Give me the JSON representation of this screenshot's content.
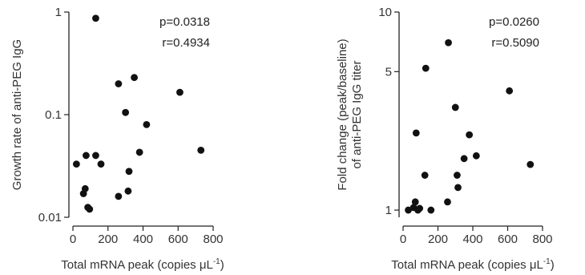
{
  "chart_data": [
    {
      "type": "scatter",
      "xlabel": "Total mRNA peak (copies μL",
      "xlabel_sup": "-1",
      "xlabel_close": ")",
      "ylabel": "Growth rate of anti-PEG IgG",
      "ylabel_line2": "",
      "xlim": [
        0,
        800
      ],
      "ylim": [
        0.01,
        1
      ],
      "yscale": "log",
      "xticks": [
        "0",
        "200",
        "400",
        "600",
        "800"
      ],
      "xtick_values": [
        0,
        200,
        400,
        600,
        800
      ],
      "yticks": [
        "0.01",
        "0.1",
        "1"
      ],
      "ytick_values": [
        0.01,
        0.1,
        1
      ],
      "annotations": [
        "p=0.0318",
        "r=0.4934"
      ],
      "points": [
        {
          "x": 20,
          "y": 0.033
        },
        {
          "x": 60,
          "y": 0.017
        },
        {
          "x": 70,
          "y": 0.019
        },
        {
          "x": 75,
          "y": 0.04
        },
        {
          "x": 85,
          "y": 0.0125
        },
        {
          "x": 95,
          "y": 0.012
        },
        {
          "x": 130,
          "y": 0.04
        },
        {
          "x": 130,
          "y": 0.87
        },
        {
          "x": 160,
          "y": 0.033
        },
        {
          "x": 260,
          "y": 0.2
        },
        {
          "x": 260,
          "y": 0.016
        },
        {
          "x": 300,
          "y": 0.105
        },
        {
          "x": 315,
          "y": 0.018
        },
        {
          "x": 320,
          "y": 0.028
        },
        {
          "x": 350,
          "y": 0.23
        },
        {
          "x": 380,
          "y": 0.043
        },
        {
          "x": 420,
          "y": 0.08
        },
        {
          "x": 610,
          "y": 0.165
        },
        {
          "x": 730,
          "y": 0.045
        }
      ]
    },
    {
      "type": "scatter",
      "xlabel": "Total mRNA peak (copies μL",
      "xlabel_sup": "-1",
      "xlabel_close": ")",
      "ylabel": "Fold change (peak/baseline)",
      "ylabel_line2": "of anti-PEG IgG titer",
      "xlim": [
        0,
        800
      ],
      "ylim": [
        0.92,
        10
      ],
      "yscale": "log",
      "xticks": [
        "0",
        "200",
        "400",
        "600",
        "800"
      ],
      "xtick_values": [
        0,
        200,
        400,
        600,
        800
      ],
      "yticks": [
        "1",
        "5",
        "10"
      ],
      "ytick_values": [
        1,
        5,
        10
      ],
      "annotations": [
        "p=0.0260",
        "r=0.5090"
      ],
      "points": [
        {
          "x": 30,
          "y": 1.0
        },
        {
          "x": 60,
          "y": 1.03
        },
        {
          "x": 70,
          "y": 1.1
        },
        {
          "x": 75,
          "y": 2.45
        },
        {
          "x": 85,
          "y": 1.0
        },
        {
          "x": 95,
          "y": 1.02
        },
        {
          "x": 125,
          "y": 1.5
        },
        {
          "x": 130,
          "y": 5.2
        },
        {
          "x": 160,
          "y": 1.0
        },
        {
          "x": 255,
          "y": 1.1
        },
        {
          "x": 260,
          "y": 7.0
        },
        {
          "x": 300,
          "y": 3.3
        },
        {
          "x": 310,
          "y": 1.5
        },
        {
          "x": 315,
          "y": 1.3
        },
        {
          "x": 350,
          "y": 1.82
        },
        {
          "x": 380,
          "y": 2.4
        },
        {
          "x": 420,
          "y": 1.88
        },
        {
          "x": 610,
          "y": 4.0
        },
        {
          "x": 730,
          "y": 1.7
        }
      ]
    }
  ]
}
